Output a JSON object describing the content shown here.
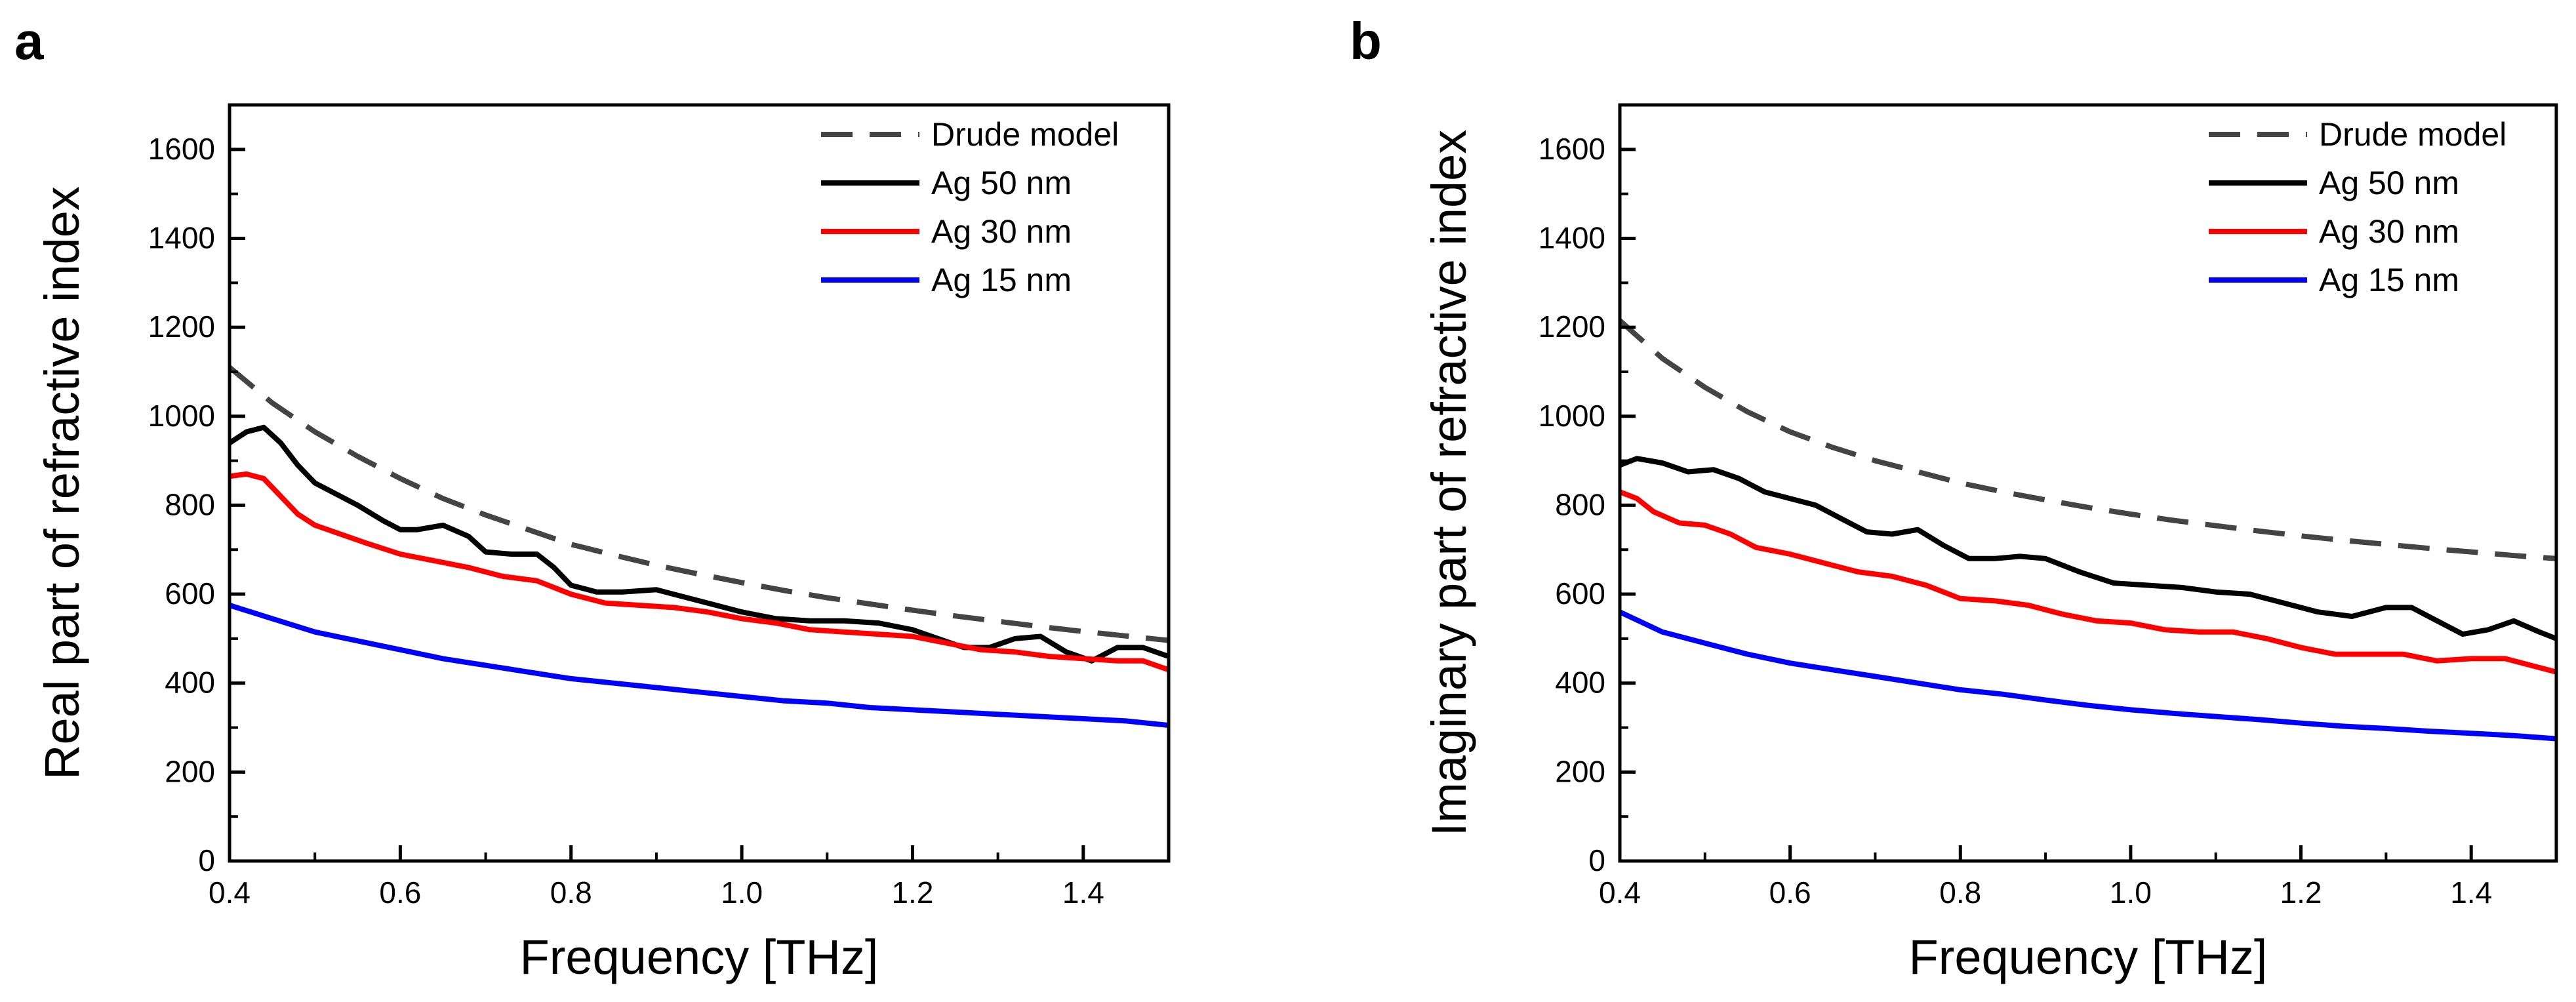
{
  "figure_title": "",
  "colors": {
    "drude": "#444444",
    "ag50": "#000000",
    "ag30": "#ff0000",
    "ag15": "#0000ff",
    "axis": "#000000"
  },
  "chart_data": [
    {
      "type": "line",
      "panel_label": "a",
      "title": "",
      "xlabel": "Frequency [THz]",
      "ylabel": "Real part of refractive index",
      "xlim": [
        0.4,
        1.5
      ],
      "ylim": [
        0,
        1700
      ],
      "xticks": [
        0.4,
        0.6,
        0.8,
        1.0,
        1.2,
        1.4
      ],
      "xtick_labels": [
        "0.4",
        "0.6",
        "0.8",
        "1.0",
        "1.2",
        "1.4"
      ],
      "yticks": [
        0,
        200,
        400,
        600,
        800,
        1000,
        1200,
        1400,
        1600
      ],
      "ytick_labels": [
        "0",
        "200",
        "400",
        "600",
        "800",
        "1000",
        "1200",
        "1400",
        "1600"
      ],
      "legend_position": "top-right",
      "grid": false,
      "series": [
        {
          "name": "Drude model",
          "style": "dashed",
          "color_key": "drude",
          "x": [
            0.4,
            0.45,
            0.5,
            0.55,
            0.6,
            0.65,
            0.7,
            0.75,
            0.8,
            0.85,
            0.9,
            0.95,
            1.0,
            1.05,
            1.1,
            1.15,
            1.2,
            1.25,
            1.3,
            1.35,
            1.4,
            1.45,
            1.5
          ],
          "values": [
            1110,
            1030,
            965,
            910,
            860,
            815,
            778,
            745,
            712,
            688,
            665,
            645,
            626,
            608,
            592,
            578,
            564,
            551,
            539,
            527,
            516,
            506,
            496
          ]
        },
        {
          "name": "Ag 50 nm",
          "style": "solid",
          "color_key": "ag50",
          "x": [
            0.4,
            0.42,
            0.44,
            0.46,
            0.48,
            0.5,
            0.52,
            0.55,
            0.58,
            0.6,
            0.62,
            0.65,
            0.68,
            0.7,
            0.73,
            0.76,
            0.78,
            0.8,
            0.83,
            0.86,
            0.9,
            0.93,
            0.96,
            1.0,
            1.04,
            1.08,
            1.12,
            1.16,
            1.2,
            1.23,
            1.26,
            1.29,
            1.32,
            1.35,
            1.38,
            1.41,
            1.44,
            1.47,
            1.5
          ],
          "values": [
            940,
            965,
            975,
            940,
            890,
            850,
            830,
            800,
            765,
            745,
            745,
            755,
            730,
            695,
            690,
            690,
            660,
            620,
            605,
            605,
            610,
            595,
            580,
            560,
            545,
            540,
            540,
            535,
            520,
            500,
            480,
            480,
            500,
            505,
            470,
            450,
            480,
            480,
            460
          ]
        },
        {
          "name": "Ag 30 nm",
          "style": "solid",
          "color_key": "ag30",
          "x": [
            0.4,
            0.42,
            0.44,
            0.46,
            0.48,
            0.5,
            0.53,
            0.56,
            0.6,
            0.64,
            0.68,
            0.72,
            0.76,
            0.8,
            0.84,
            0.88,
            0.92,
            0.96,
            1.0,
            1.04,
            1.08,
            1.12,
            1.16,
            1.2,
            1.24,
            1.28,
            1.32,
            1.36,
            1.4,
            1.44,
            1.47,
            1.5
          ],
          "values": [
            865,
            870,
            860,
            820,
            780,
            755,
            735,
            715,
            690,
            675,
            660,
            640,
            630,
            600,
            580,
            575,
            570,
            560,
            545,
            535,
            520,
            515,
            510,
            505,
            490,
            475,
            470,
            460,
            455,
            450,
            450,
            430
          ]
        },
        {
          "name": "Ag 15 nm",
          "style": "solid",
          "color_key": "ag15",
          "x": [
            0.4,
            0.45,
            0.5,
            0.55,
            0.6,
            0.65,
            0.7,
            0.75,
            0.8,
            0.85,
            0.9,
            0.95,
            1.0,
            1.05,
            1.1,
            1.15,
            1.2,
            1.25,
            1.3,
            1.35,
            1.4,
            1.45,
            1.5
          ],
          "values": [
            575,
            545,
            515,
            495,
            475,
            455,
            440,
            425,
            410,
            400,
            390,
            380,
            370,
            360,
            355,
            345,
            340,
            335,
            330,
            325,
            320,
            315,
            305
          ]
        }
      ]
    },
    {
      "type": "line",
      "panel_label": "b",
      "title": "",
      "xlabel": "Frequency [THz]",
      "ylabel": "Imaginary part of refractive index",
      "xlim": [
        0.4,
        1.5
      ],
      "ylim": [
        0,
        1700
      ],
      "xticks": [
        0.4,
        0.6,
        0.8,
        1.0,
        1.2,
        1.4
      ],
      "xtick_labels": [
        "0.4",
        "0.6",
        "0.8",
        "1.0",
        "1.2",
        "1.4"
      ],
      "yticks": [
        0,
        200,
        400,
        600,
        800,
        1000,
        1200,
        1400,
        1600
      ],
      "ytick_labels": [
        "0",
        "200",
        "400",
        "600",
        "800",
        "1000",
        "1200",
        "1400",
        "1600"
      ],
      "legend_position": "top-right",
      "grid": false,
      "series": [
        {
          "name": "Drude model",
          "style": "dashed",
          "color_key": "drude",
          "x": [
            0.4,
            0.45,
            0.5,
            0.55,
            0.6,
            0.65,
            0.7,
            0.75,
            0.8,
            0.85,
            0.9,
            0.95,
            1.0,
            1.05,
            1.1,
            1.15,
            1.2,
            1.25,
            1.3,
            1.35,
            1.4,
            1.45,
            1.5
          ],
          "values": [
            1215,
            1130,
            1065,
            1010,
            965,
            930,
            900,
            875,
            850,
            830,
            812,
            795,
            780,
            766,
            754,
            742,
            731,
            721,
            712,
            703,
            695,
            687,
            680
          ]
        },
        {
          "name": "Ag 50 nm",
          "style": "solid",
          "color_key": "ag50",
          "x": [
            0.4,
            0.42,
            0.45,
            0.48,
            0.51,
            0.54,
            0.57,
            0.6,
            0.63,
            0.66,
            0.69,
            0.72,
            0.75,
            0.78,
            0.81,
            0.84,
            0.87,
            0.9,
            0.94,
            0.98,
            1.02,
            1.06,
            1.1,
            1.14,
            1.18,
            1.22,
            1.26,
            1.3,
            1.33,
            1.36,
            1.39,
            1.42,
            1.45,
            1.48,
            1.5
          ],
          "values": [
            890,
            905,
            895,
            875,
            880,
            860,
            830,
            815,
            800,
            770,
            740,
            735,
            745,
            710,
            680,
            680,
            685,
            680,
            650,
            625,
            620,
            615,
            605,
            600,
            580,
            560,
            550,
            570,
            570,
            540,
            510,
            520,
            540,
            515,
            500
          ]
        },
        {
          "name": "Ag 30 nm",
          "style": "solid",
          "color_key": "ag30",
          "x": [
            0.4,
            0.42,
            0.44,
            0.47,
            0.5,
            0.53,
            0.56,
            0.6,
            0.64,
            0.68,
            0.72,
            0.76,
            0.8,
            0.84,
            0.88,
            0.92,
            0.96,
            1.0,
            1.04,
            1.08,
            1.12,
            1.16,
            1.2,
            1.24,
            1.28,
            1.32,
            1.36,
            1.4,
            1.44,
            1.47,
            1.5
          ],
          "values": [
            830,
            815,
            785,
            760,
            755,
            735,
            705,
            690,
            670,
            650,
            640,
            620,
            590,
            585,
            575,
            555,
            540,
            535,
            520,
            515,
            515,
            500,
            480,
            465,
            465,
            465,
            450,
            455,
            455,
            440,
            425
          ]
        },
        {
          "name": "Ag 15 nm",
          "style": "solid",
          "color_key": "ag15",
          "x": [
            0.4,
            0.45,
            0.5,
            0.55,
            0.6,
            0.65,
            0.7,
            0.75,
            0.8,
            0.85,
            0.9,
            0.95,
            1.0,
            1.05,
            1.1,
            1.15,
            1.2,
            1.25,
            1.3,
            1.35,
            1.4,
            1.45,
            1.5
          ],
          "values": [
            560,
            515,
            490,
            465,
            445,
            430,
            415,
            400,
            385,
            375,
            362,
            350,
            340,
            332,
            325,
            318,
            310,
            303,
            298,
            292,
            287,
            282,
            275
          ]
        }
      ]
    }
  ]
}
